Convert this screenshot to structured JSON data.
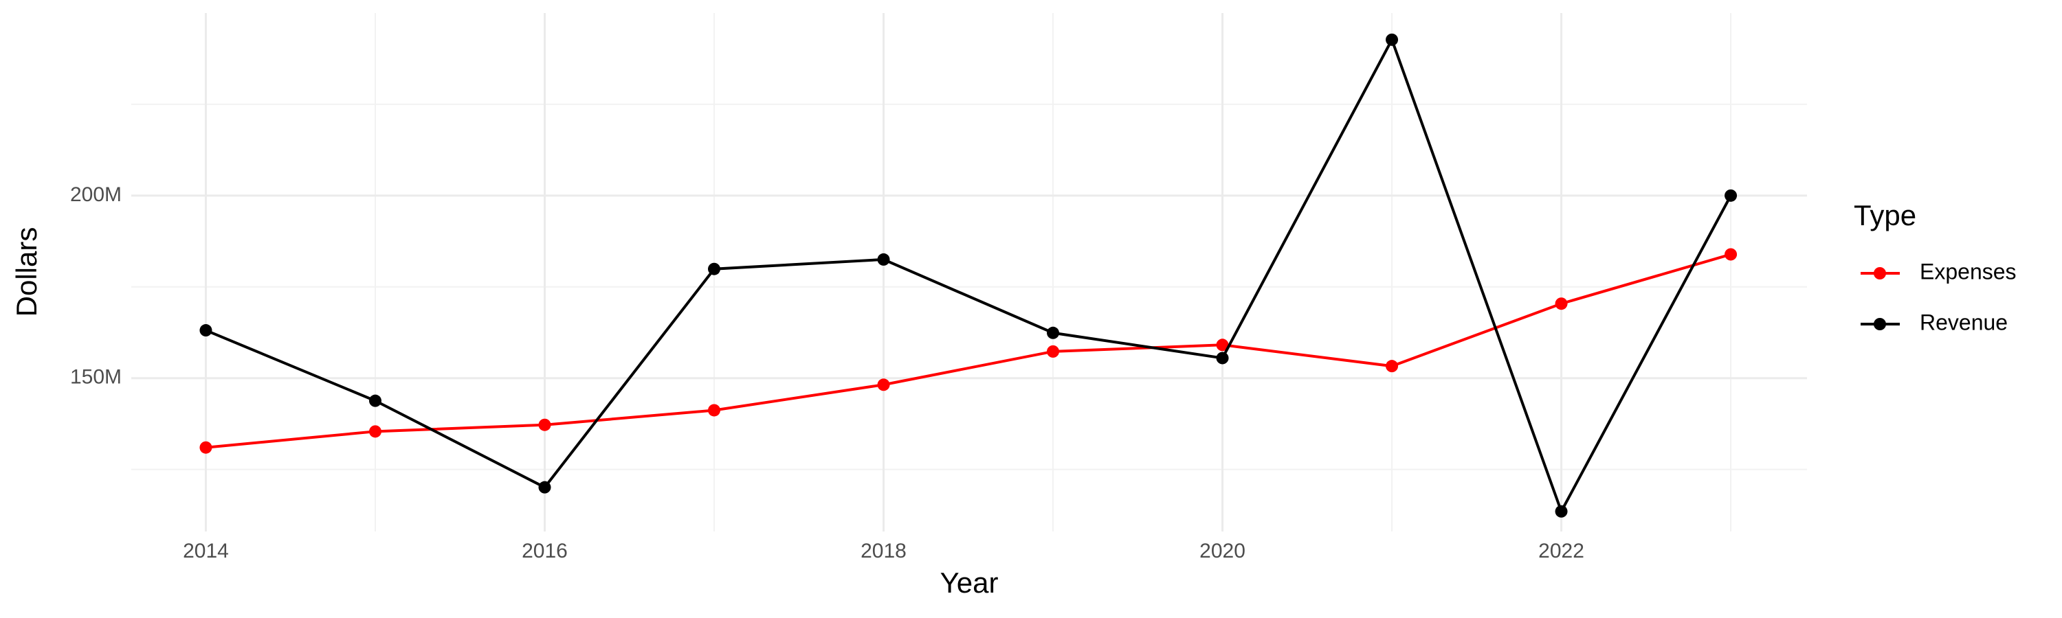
{
  "chart_data": {
    "type": "line",
    "x_label": "Year",
    "y_label": "Dollars",
    "legend_title": "Type",
    "legend_position": "right",
    "grid": true,
    "x": [
      2014,
      2015,
      2016,
      2017,
      2018,
      2019,
      2020,
      2021,
      2022,
      2023
    ],
    "series": [
      {
        "name": "Expenses",
        "color": "#ff0000",
        "values": [
          131000000,
          135400000,
          137200000,
          141200000,
          148200000,
          157300000,
          159100000,
          153300000,
          170400000,
          183900000
        ]
      },
      {
        "name": "Revenue",
        "color": "#000000",
        "values": [
          163100000,
          143800000,
          120100000,
          179900000,
          182500000,
          162400000,
          155500000,
          242700000,
          113500000,
          200000000
        ]
      }
    ],
    "xlim": [
      2013.56,
      2023.45
    ],
    "xticks": [
      2014,
      2016,
      2018,
      2020,
      2022
    ],
    "ylim": [
      108000000,
      250000000
    ],
    "yticks": [
      {
        "value": 150000000,
        "label": "150M"
      },
      {
        "value": 200000000,
        "label": "200M"
      }
    ]
  }
}
